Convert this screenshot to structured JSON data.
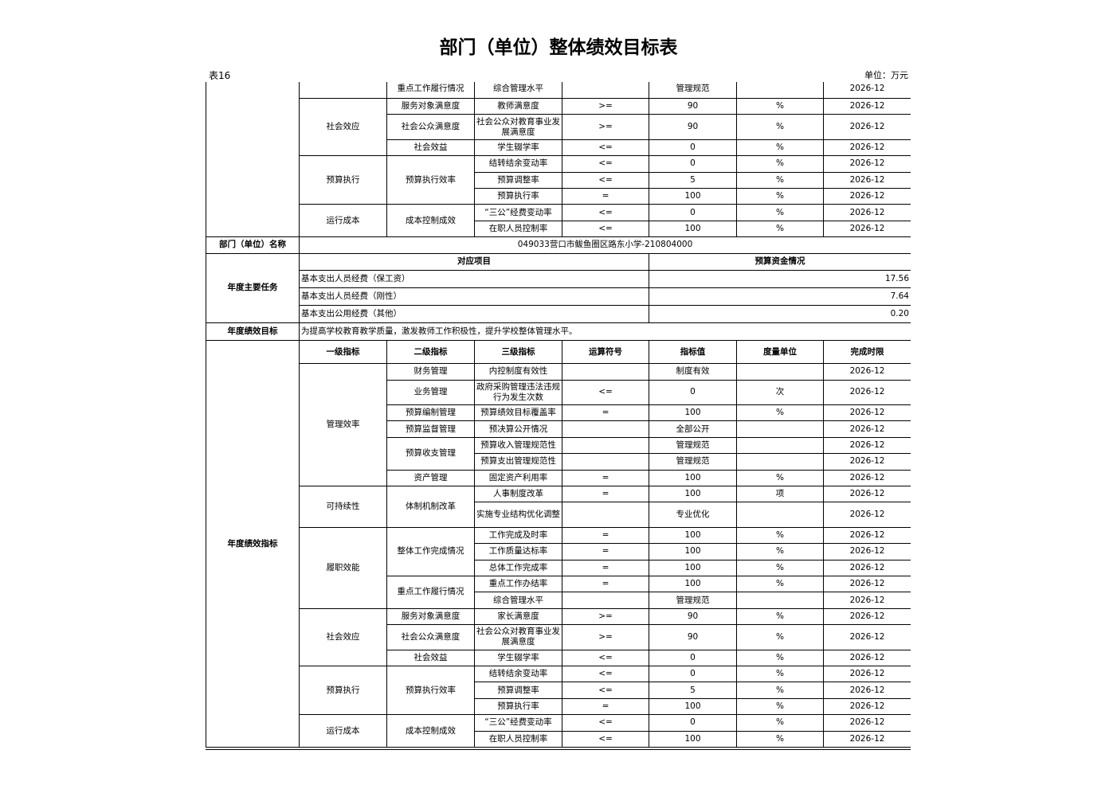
{
  "header": {
    "title": "部门（单位）整体绩效目标表",
    "table_no": "表16",
    "unit": "单位：万元"
  },
  "continued_indicators": {
    "groups": [
      {
        "subgroups": [
          {
            "level2": "重点工作履行情况",
            "items": [
              {
                "level3": "综合管理水平",
                "target": "管理规范",
                "deadline": "2026-12"
              }
            ]
          }
        ]
      },
      {
        "level1": "社会效应",
        "subgroups": [
          {
            "level2": "服务对象满意度",
            "items": [
              {
                "level3": "教师满意度",
                "operator": ">=",
                "target": "90",
                "unit": "%",
                "deadline": "2026-12"
              }
            ]
          },
          {
            "level2": "社会公众满意度",
            "items": [
              {
                "level3": "社会公众对教育事业发展满意度",
                "operator": ">=",
                "target": "90",
                "unit": "%",
                "deadline": "2026-12"
              }
            ]
          },
          {
            "level2": "社会效益",
            "items": [
              {
                "level3": "学生辍学率",
                "operator": "<=",
                "target": "0",
                "unit": "%",
                "deadline": "2026-12"
              }
            ]
          }
        ]
      },
      {
        "level1": "预算执行",
        "subgroups": [
          {
            "level2": "预算执行效率",
            "items": [
              {
                "level3": "结转结余变动率",
                "operator": "<=",
                "target": "0",
                "unit": "%",
                "deadline": "2026-12"
              },
              {
                "level3": "预算调整率",
                "operator": "<=",
                "target": "5",
                "unit": "%",
                "deadline": "2026-12"
              },
              {
                "level3": "预算执行率",
                "operator": "=",
                "target": "100",
                "unit": "%",
                "deadline": "2026-12"
              }
            ]
          }
        ]
      },
      {
        "level1": "运行成本",
        "subgroups": [
          {
            "level2": "成本控制成效",
            "items": [
              {
                "level3": "“三公”经费变动率",
                "operator": "<=",
                "target": "0",
                "unit": "%",
                "deadline": "2026-12"
              },
              {
                "level3": "在职人员控制率",
                "operator": "<=",
                "target": "100",
                "unit": "%",
                "deadline": "2026-12"
              }
            ]
          }
        ]
      }
    ]
  },
  "unit_name": {
    "label": "部门（单位）名称",
    "value": "049033营口市鲅鱼圈区路东小学-210804000"
  },
  "annual_tasks": {
    "label": "年度主要任务",
    "headers": [
      "对应项目",
      "预算资金情况"
    ],
    "rows": [
      {
        "item": "基本支出人员经费（保工资）",
        "amount": "17.56"
      },
      {
        "item": "基本支出人员经费（刚性）",
        "amount": "7.64"
      },
      {
        "item": "基本支出公用经费（其他）",
        "amount": "0.20"
      }
    ]
  },
  "annual_goal": {
    "label": "年度绩效目标",
    "text": "为提高学校教育教学质量，激发教师工作积极性，提升学校整体管理水平。"
  },
  "annual_indicators": {
    "label": "年度绩效指标",
    "headers": [
      "一级指标",
      "二级指标",
      "三级指标",
      "运算符号",
      "指标值",
      "度量单位",
      "完成时限"
    ],
    "groups": [
      {
        "level1": "管理效率",
        "subgroups": [
          {
            "level2": "财务管理",
            "items": [
              {
                "level3": "内控制度有效性",
                "target": "制度有效",
                "deadline": "2026-12"
              }
            ]
          },
          {
            "level2": "业务管理",
            "items": [
              {
                "level3": "政府采购管理违法违规行为发生次数",
                "operator": "<=",
                "target": "0",
                "unit": "次",
                "deadline": "2026-12"
              }
            ]
          },
          {
            "level2": "预算编制管理",
            "items": [
              {
                "level3": "预算绩效目标覆盖率",
                "operator": "=",
                "target": "100",
                "unit": "%",
                "deadline": "2026-12"
              }
            ]
          },
          {
            "level2": "预算监督管理",
            "items": [
              {
                "level3": "预决算公开情况",
                "target": "全部公开",
                "deadline": "2026-12"
              }
            ]
          },
          {
            "level2": "预算收支管理",
            "items": [
              {
                "level3": "预算收入管理规范性",
                "target": "管理规范",
                "deadline": "2026-12"
              },
              {
                "level3": "预算支出管理规范性",
                "target": "管理规范",
                "deadline": "2026-12"
              }
            ]
          },
          {
            "level2": "资产管理",
            "items": [
              {
                "level3": "固定资产利用率",
                "operator": "=",
                "target": "100",
                "unit": "%",
                "deadline": "2026-12"
              }
            ]
          }
        ]
      },
      {
        "level1": "可持续性",
        "subgroups": [
          {
            "level2": "体制机制改革",
            "items": [
              {
                "level3": "人事制度改革",
                "operator": "=",
                "target": "100",
                "unit": "项",
                "deadline": "2026-12"
              },
              {
                "level3": "实施专业结构优化调整",
                "target": "专业优化",
                "deadline": "2026-12"
              }
            ]
          }
        ]
      },
      {
        "level1": "履职效能",
        "subgroups": [
          {
            "level2": "整体工作完成情况",
            "items": [
              {
                "level3": "工作完成及时率",
                "operator": "=",
                "target": "100",
                "unit": "%",
                "deadline": "2026-12"
              },
              {
                "level3": "工作质量达标率",
                "operator": "=",
                "target": "100",
                "unit": "%",
                "deadline": "2026-12"
              },
              {
                "level3": "总体工作完成率",
                "operator": "=",
                "target": "100",
                "unit": "%",
                "deadline": "2026-12"
              }
            ]
          },
          {
            "level2": "重点工作履行情况",
            "items": [
              {
                "level3": "重点工作办结率",
                "operator": "=",
                "target": "100",
                "unit": "%",
                "deadline": "2026-12"
              },
              {
                "level3": "综合管理水平",
                "target": "管理规范",
                "deadline": "2026-12"
              }
            ]
          }
        ]
      },
      {
        "level1": "社会效应",
        "subgroups": [
          {
            "level2": "服务对象满意度",
            "items": [
              {
                "level3": "家长满意度",
                "operator": ">=",
                "target": "90",
                "unit": "%",
                "deadline": "2026-12"
              }
            ]
          },
          {
            "level2": "社会公众满意度",
            "items": [
              {
                "level3": "社会公众对教育事业发展满意度",
                "operator": ">=",
                "target": "90",
                "unit": "%",
                "deadline": "2026-12"
              }
            ]
          },
          {
            "level2": "社会效益",
            "items": [
              {
                "level3": "学生辍学率",
                "operator": "<=",
                "target": "0",
                "unit": "%",
                "deadline": "2026-12"
              }
            ]
          }
        ]
      },
      {
        "level1": "预算执行",
        "subgroups": [
          {
            "level2": "预算执行效率",
            "items": [
              {
                "level3": "结转结余变动率",
                "operator": "<=",
                "target": "0",
                "unit": "%",
                "deadline": "2026-12"
              },
              {
                "level3": "预算调整率",
                "operator": "<=",
                "target": "5",
                "unit": "%",
                "deadline": "2026-12"
              },
              {
                "level3": "预算执行率",
                "operator": "=",
                "target": "100",
                "unit": "%",
                "deadline": "2026-12"
              }
            ]
          }
        ]
      },
      {
        "level1": "运行成本",
        "subgroups": [
          {
            "level2": "成本控制成效",
            "items": [
              {
                "level3": "“三公”经费变动率",
                "operator": "<=",
                "target": "0",
                "unit": "%",
                "deadline": "2026-12"
              },
              {
                "level3": "在职人员控制率",
                "operator": "<=",
                "target": "100",
                "unit": "%",
                "deadline": "2026-12"
              }
            ]
          }
        ]
      }
    ]
  }
}
